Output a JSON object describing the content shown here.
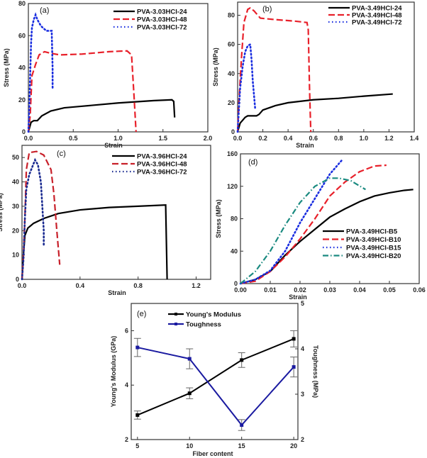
{
  "chart_data": [
    {
      "type": "line",
      "panel_label": "(a)",
      "xlabel": "Strain",
      "ylabel": "Stress (MPa)",
      "xlim": [
        0,
        2.0
      ],
      "ylim": [
        0,
        80
      ],
      "xticks": [
        "0.0",
        "0.5",
        "1.0",
        "1.5",
        "2.0"
      ],
      "xtick_values": [
        0,
        0.5,
        1.0,
        1.5,
        2.0
      ],
      "yticks": [
        "0",
        "20",
        "40",
        "60",
        "80"
      ],
      "ytick_values": [
        0,
        20,
        40,
        60,
        80
      ],
      "legend": "top-right",
      "series": [
        {
          "name": "PVA-3.03HCl-24",
          "color": "#000000",
          "style": "solid",
          "points": [
            [
              0,
              0
            ],
            [
              0.03,
              6
            ],
            [
              0.06,
              7
            ],
            [
              0.1,
              7
            ],
            [
              0.15,
              10
            ],
            [
              0.25,
              13
            ],
            [
              0.4,
              15
            ],
            [
              0.6,
              16
            ],
            [
              1.0,
              18
            ],
            [
              1.4,
              19.5
            ],
            [
              1.6,
              20
            ],
            [
              1.62,
              19
            ],
            [
              1.63,
              9
            ]
          ]
        },
        {
          "name": "PVA-3.03HCl-48",
          "color": "#e8202a",
          "style": "dash",
          "points": [
            [
              0,
              0
            ],
            [
              0.02,
              10
            ],
            [
              0.04,
              35
            ],
            [
              0.08,
              42
            ],
            [
              0.12,
              48
            ],
            [
              0.18,
              50
            ],
            [
              0.25,
              49
            ],
            [
              0.35,
              48
            ],
            [
              0.6,
              48.5
            ],
            [
              0.9,
              50
            ],
            [
              1.1,
              50.5
            ],
            [
              1.15,
              48
            ],
            [
              1.18,
              20
            ],
            [
              1.2,
              0
            ]
          ]
        },
        {
          "name": "PVA-3.03HCl-72",
          "color": "#1a2ee0",
          "style": "dot",
          "points": [
            [
              0,
              0
            ],
            [
              0.01,
              15
            ],
            [
              0.02,
              35
            ],
            [
              0.03,
              55
            ],
            [
              0.04,
              65
            ],
            [
              0.06,
              70
            ],
            [
              0.08,
              73
            ],
            [
              0.1,
              70
            ],
            [
              0.14,
              66
            ],
            [
              0.2,
              63
            ],
            [
              0.26,
              63
            ],
            [
              0.27,
              40
            ],
            [
              0.27,
              27
            ]
          ]
        }
      ]
    },
    {
      "type": "line",
      "panel_label": "(b)",
      "xlabel": "Strain",
      "ylabel": "Stress (MPa)",
      "xlim": [
        0,
        1.4
      ],
      "ylim": [
        0,
        89
      ],
      "xticks": [
        "0.0",
        "0.2",
        "0.4",
        "0.6",
        "0.8",
        "1.0",
        "1.2",
        "1.4"
      ],
      "xtick_values": [
        0,
        0.2,
        0.4,
        0.6,
        0.8,
        1.0,
        1.2,
        1.4
      ],
      "yticks": [
        "0",
        "20",
        "40",
        "60",
        "80"
      ],
      "ytick_values": [
        0,
        20,
        40,
        60,
        80
      ],
      "legend": "top-right",
      "series": [
        {
          "name": "PVA-3.49HCl-24",
          "color": "#000000",
          "style": "solid",
          "points": [
            [
              0,
              0
            ],
            [
              0.02,
              6
            ],
            [
              0.06,
              10
            ],
            [
              0.08,
              11
            ],
            [
              0.15,
              11
            ],
            [
              0.17,
              12
            ],
            [
              0.2,
              15
            ],
            [
              0.3,
              18
            ],
            [
              0.4,
              20
            ],
            [
              0.6,
              22
            ],
            [
              0.8,
              23
            ],
            [
              1.0,
              24.5
            ],
            [
              1.23,
              26
            ]
          ]
        },
        {
          "name": "PVA-3.49HCl-48",
          "color": "#e8202a",
          "style": "dash",
          "points": [
            [
              0,
              0
            ],
            [
              0.01,
              20
            ],
            [
              0.03,
              50
            ],
            [
              0.05,
              75
            ],
            [
              0.08,
              84
            ],
            [
              0.1,
              85
            ],
            [
              0.13,
              83
            ],
            [
              0.18,
              78
            ],
            [
              0.3,
              77
            ],
            [
              0.45,
              76
            ],
            [
              0.55,
              75
            ],
            [
              0.56,
              70
            ],
            [
              0.57,
              30
            ],
            [
              0.58,
              0
            ]
          ]
        },
        {
          "name": "PVA-3.49HCl-72",
          "color": "#1a2ee0",
          "style": "dot",
          "points": [
            [
              0,
              0
            ],
            [
              0.01,
              15
            ],
            [
              0.02,
              30
            ],
            [
              0.04,
              45
            ],
            [
              0.06,
              55
            ],
            [
              0.08,
              59
            ],
            [
              0.1,
              60
            ],
            [
              0.11,
              50
            ],
            [
              0.12,
              35
            ],
            [
              0.13,
              25
            ],
            [
              0.14,
              15
            ]
          ]
        }
      ]
    },
    {
      "type": "line",
      "panel_label": "(c)",
      "xlabel": "Strain",
      "ylabel": "Stress (MPa)",
      "xlim": [
        0,
        1.3
      ],
      "ylim": [
        0,
        55
      ],
      "xticks": [
        "0.0",
        "0.4",
        "0.8",
        "1.2"
      ],
      "xtick_values": [
        0,
        0.4,
        0.8,
        1.2
      ],
      "yticks": [
        "0",
        "10",
        "20",
        "30",
        "40",
        "50"
      ],
      "ytick_values": [
        0,
        10,
        20,
        30,
        40,
        50
      ],
      "legend": "top-right",
      "series": [
        {
          "name": "PVA-3.96HCl-24",
          "color": "#000000",
          "style": "solid",
          "points": [
            [
              0,
              0
            ],
            [
              0.01,
              10
            ],
            [
              0.02,
              18
            ],
            [
              0.04,
              21
            ],
            [
              0.08,
              23
            ],
            [
              0.15,
              25
            ],
            [
              0.25,
              27
            ],
            [
              0.4,
              28.5
            ],
            [
              0.6,
              29.5
            ],
            [
              0.8,
              30
            ],
            [
              0.99,
              30.5
            ],
            [
              1.0,
              0
            ]
          ]
        },
        {
          "name": "PVA-3.96HCl-48",
          "color": "#c8202a",
          "style": "dash",
          "points": [
            [
              0,
              0
            ],
            [
              0.01,
              10
            ],
            [
              0.02,
              25
            ],
            [
              0.03,
              45
            ],
            [
              0.05,
              52
            ],
            [
              0.1,
              52.5
            ],
            [
              0.15,
              51
            ],
            [
              0.2,
              45
            ],
            [
              0.22,
              35
            ],
            [
              0.24,
              20
            ],
            [
              0.26,
              6
            ]
          ]
        },
        {
          "name": "PVA-3.96HCl-72",
          "color": "#1a2a90",
          "style": "dot",
          "points": [
            [
              0,
              0
            ],
            [
              0.01,
              8
            ],
            [
              0.02,
              25
            ],
            [
              0.03,
              37
            ],
            [
              0.05,
              43
            ],
            [
              0.07,
              46
            ],
            [
              0.09,
              49
            ],
            [
              0.11,
              47
            ],
            [
              0.13,
              40
            ],
            [
              0.14,
              30
            ],
            [
              0.15,
              20
            ],
            [
              0.15,
              14
            ]
          ]
        }
      ]
    },
    {
      "type": "line",
      "panel_label": "(d)",
      "xlabel": "Strain",
      "ylabel": "Stress (MPa)",
      "xlim": [
        0,
        0.06
      ],
      "ylim": [
        0,
        160
      ],
      "xticks": [
        "0.00",
        "0.01",
        "0.02",
        "0.03",
        "0.04",
        "0.05",
        "0.06"
      ],
      "xtick_values": [
        0,
        0.01,
        0.02,
        0.03,
        0.04,
        0.05,
        0.06
      ],
      "yticks": [
        "0",
        "40",
        "80",
        "120",
        "160"
      ],
      "ytick_values": [
        0,
        40,
        80,
        120,
        160
      ],
      "legend": "center-right",
      "series": [
        {
          "name": "PVA-3.49HCl-B5",
          "color": "#000000",
          "style": "solid",
          "points": [
            [
              0,
              0
            ],
            [
              0.005,
              5
            ],
            [
              0.01,
              15
            ],
            [
              0.015,
              35
            ],
            [
              0.02,
              52
            ],
            [
              0.025,
              67
            ],
            [
              0.03,
              82
            ],
            [
              0.035,
              92
            ],
            [
              0.04,
              101
            ],
            [
              0.045,
              108
            ],
            [
              0.05,
              112
            ],
            [
              0.055,
              115
            ],
            [
              0.058,
              116
            ]
          ]
        },
        {
          "name": "PVA-3.49HCl-B10",
          "color": "#e8202a",
          "style": "dash",
          "points": [
            [
              0,
              0
            ],
            [
              0.005,
              3
            ],
            [
              0.01,
              15
            ],
            [
              0.015,
              33
            ],
            [
              0.02,
              55
            ],
            [
              0.025,
              80
            ],
            [
              0.03,
              108
            ],
            [
              0.035,
              125
            ],
            [
              0.04,
              138
            ],
            [
              0.045,
              145
            ],
            [
              0.049,
              146
            ]
          ]
        },
        {
          "name": "PVA-3.49HCl-B15",
          "color": "#1a2ee0",
          "style": "dot",
          "points": [
            [
              0,
              0
            ],
            [
              0.005,
              5
            ],
            [
              0.01,
              16
            ],
            [
              0.015,
              40
            ],
            [
              0.02,
              75
            ],
            [
              0.025,
              105
            ],
            [
              0.03,
              135
            ],
            [
              0.034,
              152
            ]
          ]
        },
        {
          "name": "PVA-3.49HCl-B20",
          "color": "#1a8a80",
          "style": "dashdot",
          "points": [
            [
              0,
              0
            ],
            [
              0.005,
              15
            ],
            [
              0.01,
              40
            ],
            [
              0.015,
              72
            ],
            [
              0.02,
              100
            ],
            [
              0.025,
              120
            ],
            [
              0.03,
              130
            ],
            [
              0.033,
              130
            ],
            [
              0.037,
              127
            ],
            [
              0.042,
              116
            ]
          ]
        }
      ]
    },
    {
      "type": "line",
      "panel_label": "(e)",
      "xlabel": "Fiber content",
      "ylabel": "Young's Modulus (GPa)",
      "ylabel_right": "Toughness (MPa)",
      "xlim": [
        4.4,
        20.4
      ],
      "ylim": [
        2,
        7
      ],
      "ylim_right": [
        2,
        5
      ],
      "xticks": [
        "5",
        "10",
        "15",
        "20"
      ],
      "xtick_values": [
        5,
        10,
        15,
        20
      ],
      "yticks": [
        "2",
        "4",
        "6"
      ],
      "ytick_values": [
        2,
        4,
        6
      ],
      "yticks_right": [
        "2",
        "3",
        "4",
        "5"
      ],
      "ytick_values_right": [
        2,
        3,
        4,
        5
      ],
      "legend": "top-center",
      "series": [
        {
          "name": "Young's Modulus",
          "color": "#000000",
          "axis": "left",
          "points": [
            [
              5,
              2.9
            ],
            [
              10,
              3.7
            ],
            [
              15,
              4.92
            ],
            [
              20,
              5.7
            ]
          ],
          "errors": [
            0.15,
            0.2,
            0.27,
            0.3
          ]
        },
        {
          "name": "Toughness",
          "color": "#1a1aa0",
          "axis": "right",
          "points": [
            [
              5,
              4.03
            ],
            [
              10,
              3.78
            ],
            [
              15,
              2.32
            ],
            [
              20,
              3.6
            ]
          ],
          "errors": [
            0.2,
            0.22,
            0.12,
            0.22
          ]
        }
      ]
    }
  ]
}
